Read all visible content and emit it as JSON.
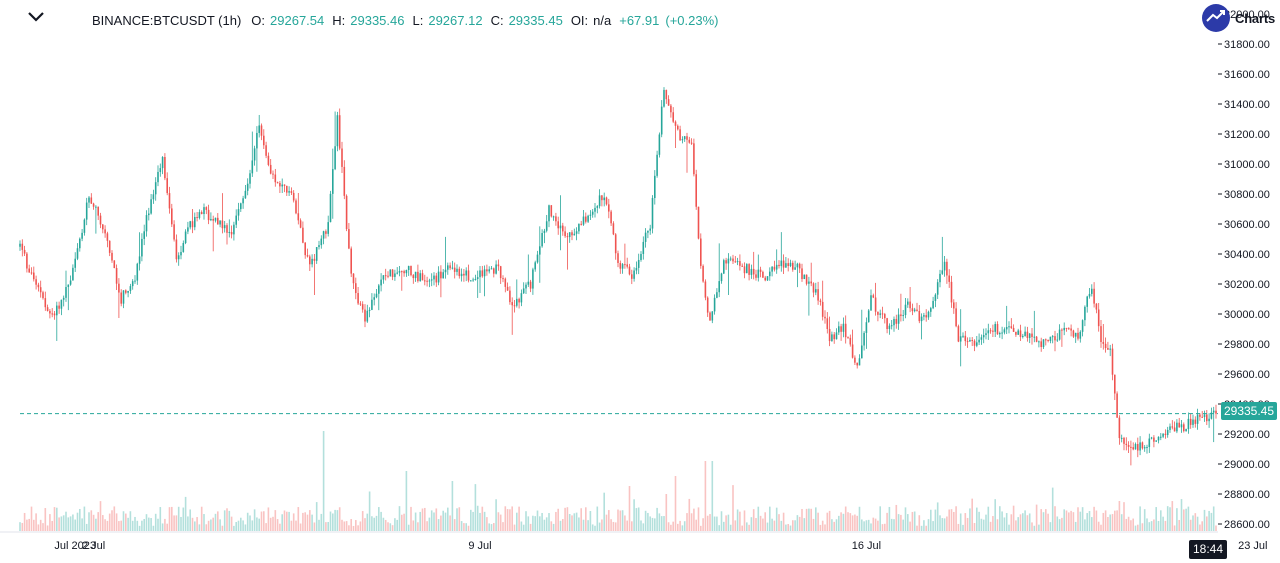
{
  "legend": {
    "symbol": "BINANCE:BTCUSDT (1h)",
    "o_label": "O:",
    "o_value": "29267.54",
    "h_label": "H:",
    "h_value": "29335.46",
    "l_label": "L:",
    "l_value": "29267.12",
    "c_label": "C:",
    "c_value": "29335.45",
    "oi_label": "OI:",
    "oi_value": "n/a",
    "change": "+67.91",
    "change_pct": "(+0.23%)"
  },
  "brand": "Charts",
  "icons": {
    "collapse": "chevron-down-icon",
    "badge": "chart-line-icon"
  },
  "last_price_label": "29335.45",
  "crosshair_time_label": "18:44",
  "colors": {
    "up": "#26a69a",
    "down": "#ef5350",
    "axis_text": "#131722",
    "badge": "#2c3aa8"
  },
  "chart_data": {
    "type": "candlestick",
    "title": "",
    "xlabel": "",
    "ylabel": "",
    "ylim": [
      28600,
      31900
    ],
    "y_ticks": [
      "28600.00",
      "28800.00",
      "29000.00",
      "29200.00",
      "29400.00",
      "29600.00",
      "29800.00",
      "30000.00",
      "30200.00",
      "30400.00",
      "30600.00",
      "30800.00",
      "31000.00",
      "31200.00",
      "31400.00",
      "31600.00",
      "31800.00",
      "32000.00"
    ],
    "x_ticks": [
      {
        "label": "Jul 2023",
        "index": 24
      },
      {
        "label": "2 Jul",
        "index": 32
      },
      {
        "label": "9 Jul",
        "index": 200
      },
      {
        "label": "16 Jul",
        "index": 368
      },
      {
        "label": "23 Jul",
        "index": 536
      }
    ],
    "last_price": 29335.45,
    "grid": false,
    "key_points": [
      [
        0,
        30450
      ],
      [
        8,
        30150
      ],
      [
        14,
        29980
      ],
      [
        22,
        30200
      ],
      [
        30,
        30800
      ],
      [
        38,
        30500
      ],
      [
        44,
        30100
      ],
      [
        50,
        30250
      ],
      [
        56,
        30700
      ],
      [
        62,
        31050
      ],
      [
        68,
        30350
      ],
      [
        74,
        30600
      ],
      [
        80,
        30680
      ],
      [
        86,
        30600
      ],
      [
        92,
        30550
      ],
      [
        98,
        30800
      ],
      [
        104,
        31250
      ],
      [
        110,
        30900
      ],
      [
        118,
        30800
      ],
      [
        126,
        30300
      ],
      [
        134,
        30600
      ],
      [
        138,
        31300
      ],
      [
        144,
        30250
      ],
      [
        150,
        29950
      ],
      [
        158,
        30250
      ],
      [
        168,
        30300
      ],
      [
        178,
        30200
      ],
      [
        186,
        30300
      ],
      [
        196,
        30250
      ],
      [
        208,
        30300
      ],
      [
        214,
        30050
      ],
      [
        222,
        30200
      ],
      [
        230,
        30700
      ],
      [
        238,
        30500
      ],
      [
        246,
        30650
      ],
      [
        254,
        30800
      ],
      [
        260,
        30350
      ],
      [
        266,
        30250
      ],
      [
        274,
        30600
      ],
      [
        280,
        31500
      ],
      [
        286,
        31200
      ],
      [
        292,
        31150
      ],
      [
        296,
        30300
      ],
      [
        300,
        29950
      ],
      [
        306,
        30350
      ],
      [
        316,
        30300
      ],
      [
        324,
        30250
      ],
      [
        330,
        30350
      ],
      [
        338,
        30300
      ],
      [
        346,
        30150
      ],
      [
        352,
        29850
      ],
      [
        358,
        29900
      ],
      [
        364,
        29650
      ],
      [
        370,
        30100
      ],
      [
        378,
        29900
      ],
      [
        386,
        30050
      ],
      [
        394,
        29950
      ],
      [
        402,
        30350
      ],
      [
        408,
        29850
      ],
      [
        414,
        29800
      ],
      [
        422,
        29900
      ],
      [
        430,
        29900
      ],
      [
        438,
        29850
      ],
      [
        446,
        29800
      ],
      [
        454,
        29900
      ],
      [
        460,
        29850
      ],
      [
        466,
        30200
      ],
      [
        470,
        29800
      ],
      [
        474,
        29750
      ],
      [
        478,
        29150
      ],
      [
        484,
        29100
      ],
      [
        492,
        29150
      ],
      [
        500,
        29250
      ],
      [
        506,
        29250
      ],
      [
        512,
        29300
      ],
      [
        518,
        29320
      ],
      [
        520,
        29335.45
      ]
    ],
    "volume_spikes": [
      {
        "index": 132,
        "volume": 100
      },
      {
        "index": 168,
        "volume": 60
      },
      {
        "index": 188,
        "volume": 50
      },
      {
        "index": 265,
        "volume": 45
      },
      {
        "index": 285,
        "volume": 55
      },
      {
        "index": 298,
        "volume": 70
      },
      {
        "index": 301,
        "volume": 70
      },
      {
        "index": 478,
        "volume": 30
      }
    ]
  }
}
